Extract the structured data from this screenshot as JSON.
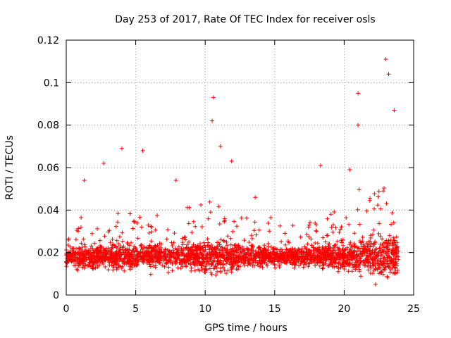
{
  "chart_data": {
    "type": "scatter",
    "title": "Day 253 of 2017, Rate Of TEC Index for receiver osls",
    "xlabel": "GPS time / hours",
    "ylabel": "ROTI / TECUs",
    "xlim": [
      0,
      25
    ],
    "ylim": [
      0,
      0.12
    ],
    "xticks": [
      0,
      5,
      10,
      15,
      20,
      25
    ],
    "yticks": [
      0,
      0.02,
      0.04,
      0.06,
      0.08,
      0.1,
      0.12
    ],
    "xtick_labels": [
      "0",
      "5",
      "10",
      "15",
      "20",
      "25"
    ],
    "ytick_labels": [
      "0",
      "0.02",
      "0.04",
      "0.06",
      "0.08",
      "0.1",
      "0.12"
    ],
    "grid": true,
    "marker": "+",
    "color": "#ff0000",
    "series": [
      {
        "name": "ROTI",
        "x_range": [
          0,
          23.9
        ],
        "baseline_band": [
          0.008,
          0.03
        ],
        "notable_points": [
          {
            "x": 23.0,
            "y": 0.111
          },
          {
            "x": 21.0,
            "y": 0.095
          },
          {
            "x": 10.6,
            "y": 0.093
          },
          {
            "x": 23.2,
            "y": 0.104
          },
          {
            "x": 23.6,
            "y": 0.087
          },
          {
            "x": 10.5,
            "y": 0.082
          },
          {
            "x": 21.0,
            "y": 0.08
          },
          {
            "x": 11.1,
            "y": 0.07
          },
          {
            "x": 4.0,
            "y": 0.069
          },
          {
            "x": 5.5,
            "y": 0.068
          },
          {
            "x": 11.9,
            "y": 0.063
          },
          {
            "x": 2.7,
            "y": 0.062
          },
          {
            "x": 18.3,
            "y": 0.061
          },
          {
            "x": 1.3,
            "y": 0.054
          },
          {
            "x": 7.9,
            "y": 0.054
          },
          {
            "x": 20.4,
            "y": 0.059
          },
          {
            "x": 13.6,
            "y": 0.046
          }
        ]
      }
    ]
  }
}
